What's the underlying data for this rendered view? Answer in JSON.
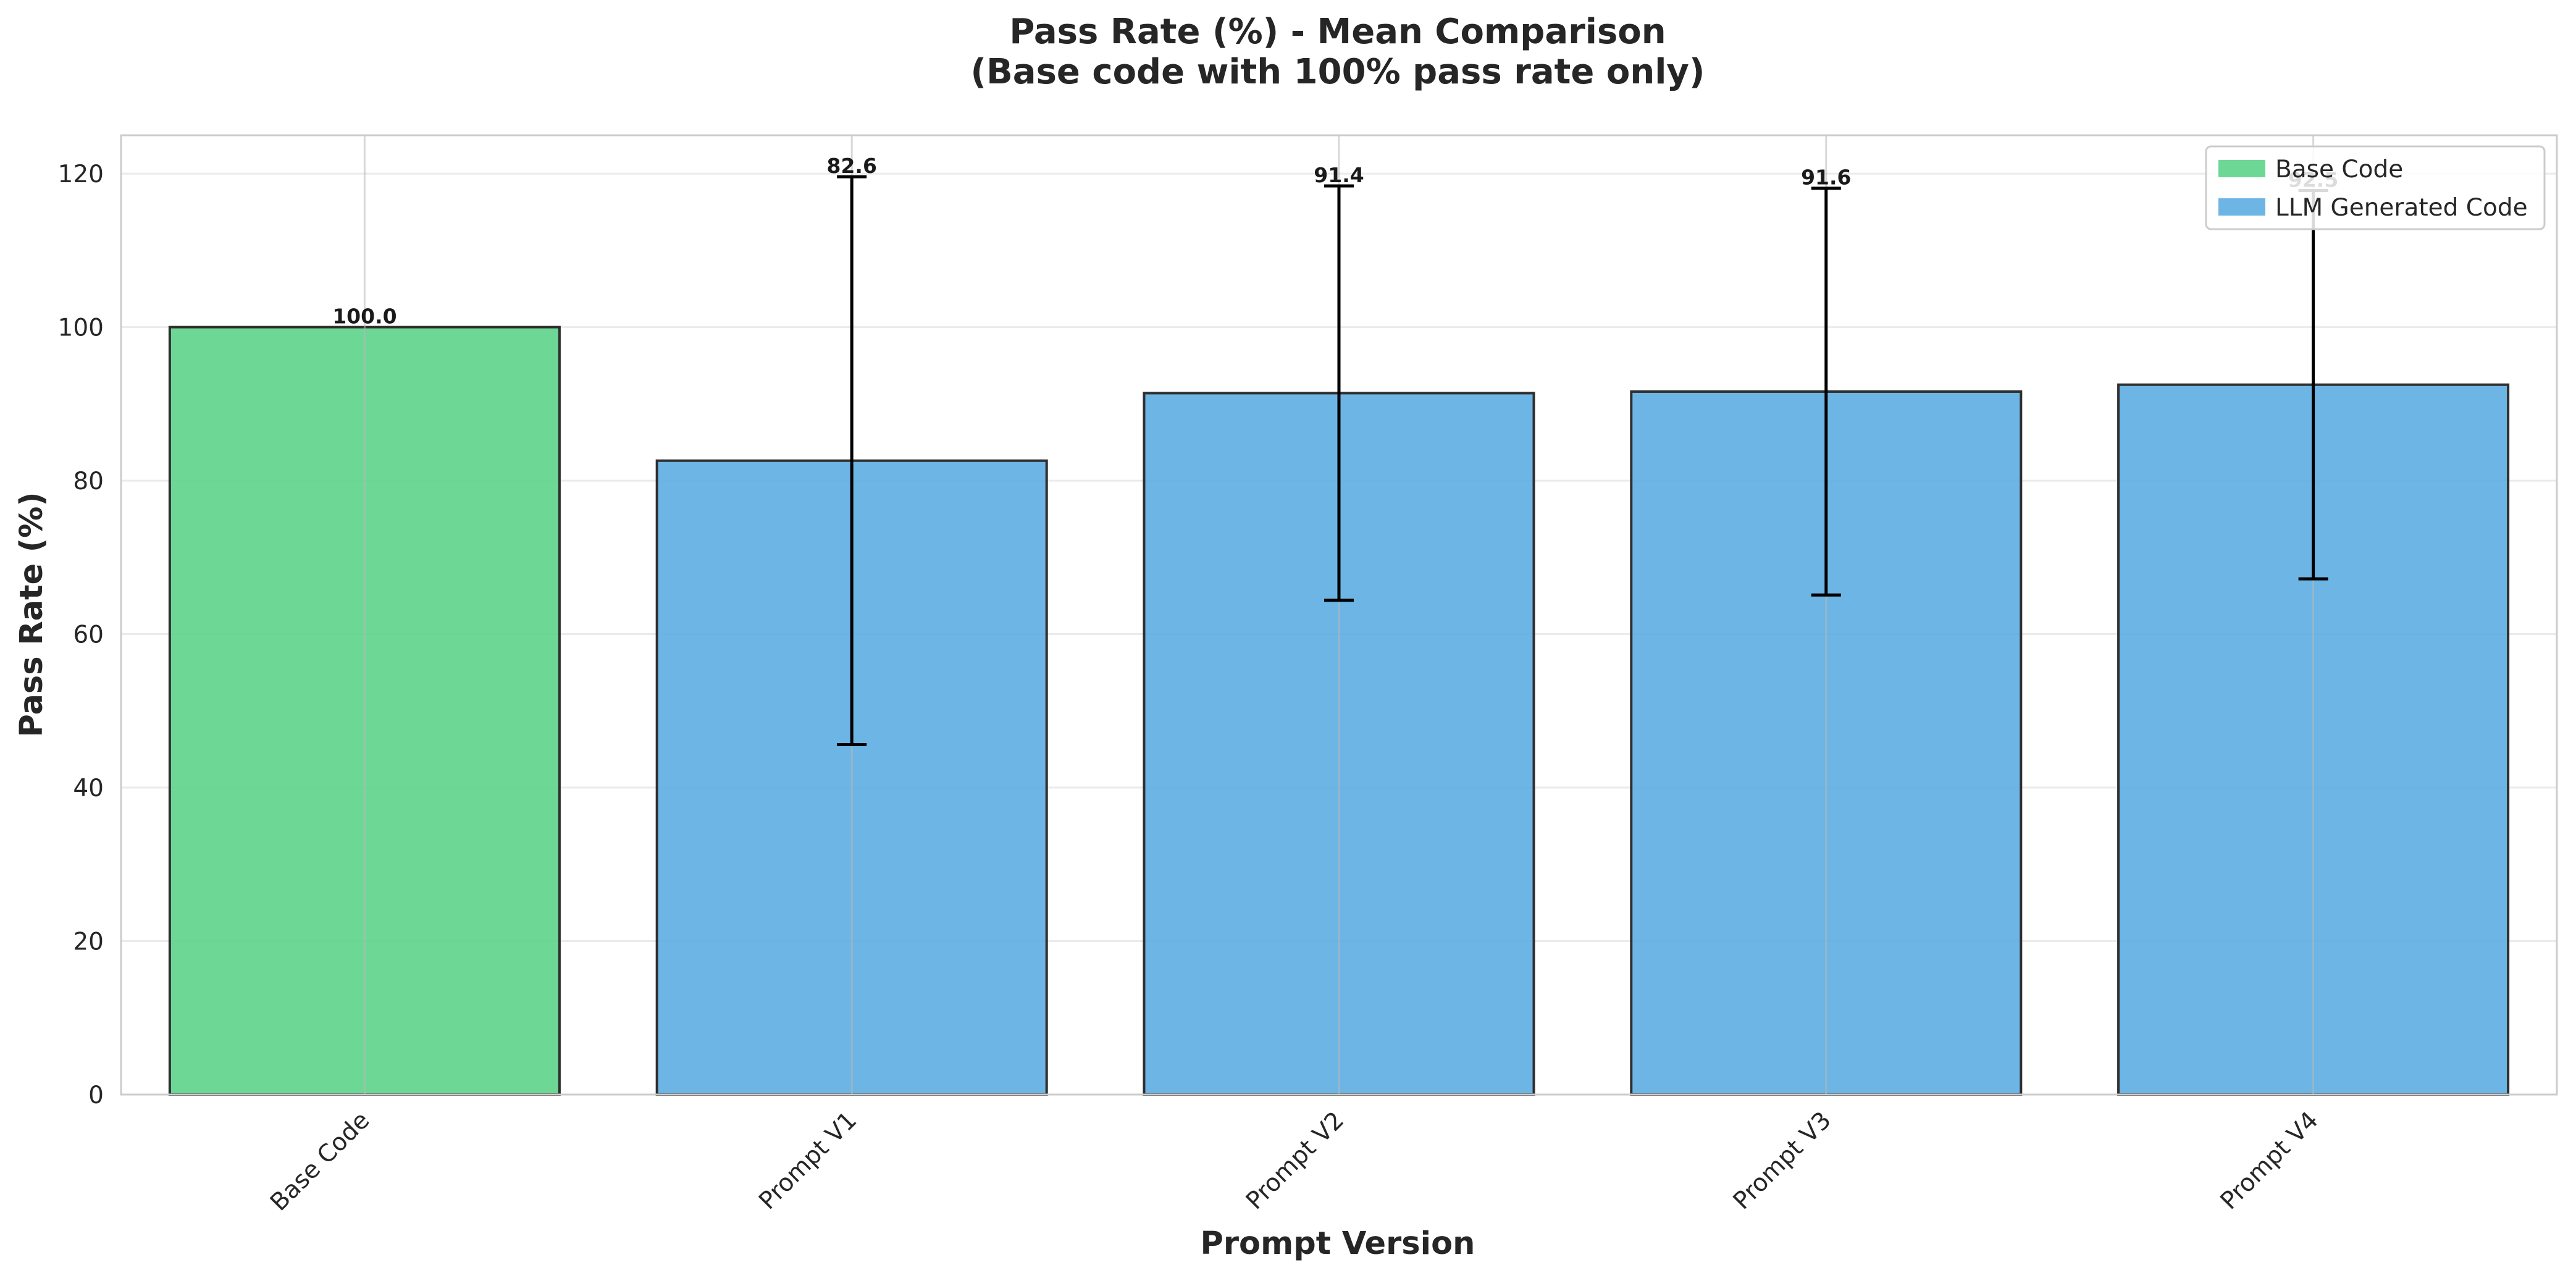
{
  "chart_data": {
    "type": "bar",
    "title": "Pass Rate (%) - Mean Comparison",
    "subtitle": "(Base code with 100% pass rate only)",
    "xlabel": "Prompt Version",
    "ylabel": "Pass Rate (%)",
    "categories": [
      "Base Code",
      "Prompt V1",
      "Prompt V2",
      "Prompt V3",
      "Prompt V4"
    ],
    "values": [
      100.0,
      82.6,
      91.4,
      91.6,
      92.5
    ],
    "value_labels": [
      "100.0",
      "82.6",
      "91.4",
      "91.6",
      "92.5"
    ],
    "error": [
      null,
      37.0,
      27.0,
      26.5,
      25.3
    ],
    "series_for_bar": [
      "Base Code",
      "LLM Generated Code",
      "LLM Generated Code",
      "LLM Generated Code",
      "LLM Generated Code"
    ],
    "series": [
      {
        "name": "Base Code",
        "color": "#5dd48a"
      },
      {
        "name": "LLM Generated Code",
        "color": "#5dade2"
      }
    ],
    "ylim": [
      0,
      125
    ],
    "yticks": [
      0,
      20,
      40,
      60,
      80,
      100,
      120
    ],
    "grid": true,
    "legend_position": "top-right"
  }
}
